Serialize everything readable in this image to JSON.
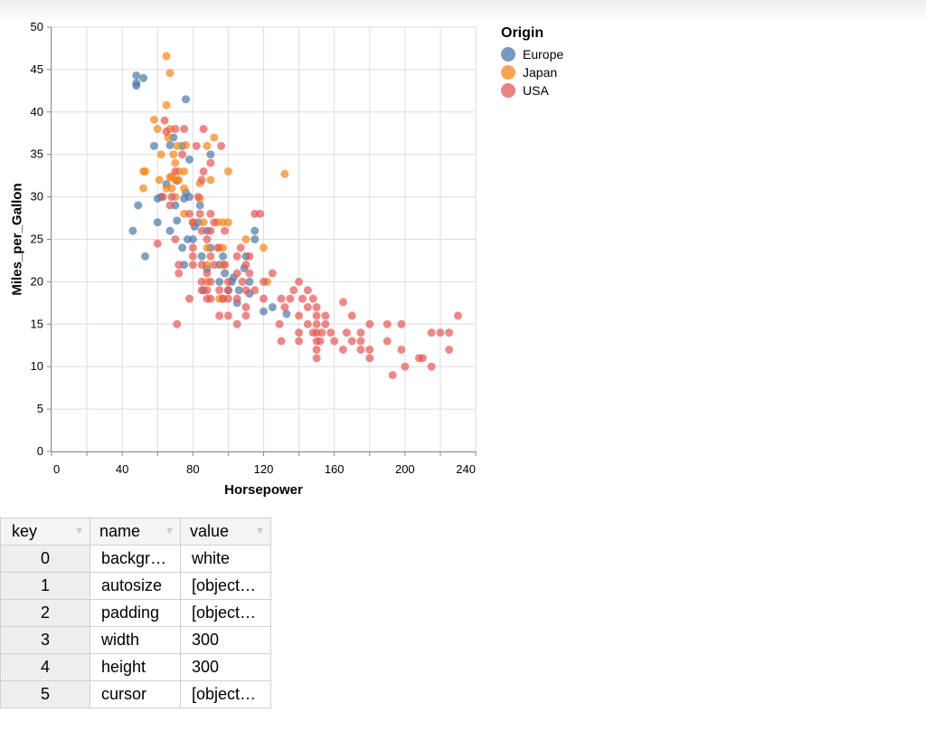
{
  "chart_data": {
    "type": "scatter",
    "xlabel": "Horsepower",
    "ylabel": "Miles_per_Gallon",
    "xlim": [
      0,
      240
    ],
    "ylim": [
      0,
      50
    ],
    "x_ticks": [
      "0",
      "40",
      "80",
      "120",
      "160",
      "200",
      "240"
    ],
    "y_ticks": [
      "0",
      "5",
      "10",
      "15",
      "20",
      "25",
      "30",
      "35",
      "40",
      "45",
      "50"
    ],
    "grid": true,
    "legend": {
      "title": "Origin",
      "placement": "right"
    },
    "series": [
      {
        "name": "Europe",
        "color": "#4c78a8",
        "points": [
          [
            46,
            26
          ],
          [
            48,
            44.3
          ],
          [
            48,
            43.4
          ],
          [
            48,
            43.1
          ],
          [
            49,
            29
          ],
          [
            52,
            44
          ],
          [
            53,
            23
          ],
          [
            58,
            36
          ],
          [
            60,
            27
          ],
          [
            60,
            29.8
          ],
          [
            62,
            30
          ],
          [
            65,
            31.5
          ],
          [
            67,
            26
          ],
          [
            67,
            36.1
          ],
          [
            69,
            37
          ],
          [
            70,
            29
          ],
          [
            71,
            31.9
          ],
          [
            71,
            27.2
          ],
          [
            74,
            36
          ],
          [
            74,
            24
          ],
          [
            75,
            29.8
          ],
          [
            75,
            22
          ],
          [
            76,
            30.5
          ],
          [
            76,
            41.5
          ],
          [
            77,
            25
          ],
          [
            78,
            30
          ],
          [
            78,
            34.4
          ],
          [
            80,
            25
          ],
          [
            81,
            26.5
          ],
          [
            83,
            27
          ],
          [
            84,
            29
          ],
          [
            85,
            23
          ],
          [
            86,
            19
          ],
          [
            88,
            21.5
          ],
          [
            88,
            26
          ],
          [
            90,
            24
          ],
          [
            90,
            35
          ],
          [
            95,
            22
          ],
          [
            95,
            20
          ],
          [
            97,
            23
          ],
          [
            98,
            21
          ],
          [
            100,
            19
          ],
          [
            102,
            20
          ],
          [
            103,
            20.5
          ],
          [
            105,
            17.5
          ],
          [
            106,
            19
          ],
          [
            109,
            21.6
          ],
          [
            110,
            23
          ],
          [
            112,
            20
          ],
          [
            112,
            18.6
          ],
          [
            115,
            25
          ],
          [
            115,
            26
          ],
          [
            120,
            16.5
          ],
          [
            125,
            17
          ],
          [
            133,
            16.2
          ]
        ]
      },
      {
        "name": "Japan",
        "color": "#f58518",
        "points": [
          [
            52,
            31
          ],
          [
            52,
            33
          ],
          [
            53,
            33
          ],
          [
            58,
            39.1
          ],
          [
            60,
            38
          ],
          [
            61,
            32
          ],
          [
            62,
            35
          ],
          [
            65,
            46.6
          ],
          [
            65,
            31
          ],
          [
            65,
            40.8
          ],
          [
            66,
            37
          ],
          [
            67,
            44.6
          ],
          [
            67,
            32.3
          ],
          [
            67,
            38
          ],
          [
            68,
            32.4
          ],
          [
            68,
            31
          ],
          [
            69,
            35
          ],
          [
            70,
            34
          ],
          [
            70,
            32
          ],
          [
            70,
            30
          ],
          [
            71,
            36
          ],
          [
            72,
            33
          ],
          [
            72,
            32
          ],
          [
            75,
            33
          ],
          [
            75,
            31
          ],
          [
            75,
            28
          ],
          [
            76,
            36.1
          ],
          [
            80,
            27
          ],
          [
            84,
            29.8
          ],
          [
            84,
            31.6
          ],
          [
            86,
            27
          ],
          [
            88,
            24
          ],
          [
            88,
            36
          ],
          [
            90,
            32
          ],
          [
            92,
            37
          ],
          [
            94,
            27
          ],
          [
            95,
            24
          ],
          [
            95,
            18
          ],
          [
            97,
            27
          ],
          [
            97,
            24
          ],
          [
            97,
            22
          ],
          [
            100,
            33
          ],
          [
            100,
            27
          ],
          [
            110,
            25
          ],
          [
            120,
            24
          ],
          [
            122,
            20
          ],
          [
            132,
            32.7
          ],
          [
            97,
            18
          ],
          [
            88,
            20
          ],
          [
            88,
            22
          ]
        ]
      },
      {
        "name": "USA",
        "color": "#e45756",
        "points": [
          [
            60,
            24.5
          ],
          [
            63,
            30
          ],
          [
            64,
            39
          ],
          [
            65,
            37.7
          ],
          [
            67,
            29
          ],
          [
            68,
            30
          ],
          [
            70,
            25
          ],
          [
            70,
            33
          ],
          [
            70,
            38
          ],
          [
            71,
            15
          ],
          [
            72,
            22
          ],
          [
            72,
            21
          ],
          [
            74,
            35
          ],
          [
            75,
            38
          ],
          [
            78,
            18
          ],
          [
            78,
            28
          ],
          [
            80,
            24
          ],
          [
            80,
            22
          ],
          [
            80,
            27
          ],
          [
            80,
            23
          ],
          [
            82,
            36
          ],
          [
            83,
            30
          ],
          [
            84,
            28
          ],
          [
            85,
            20
          ],
          [
            85,
            22
          ],
          [
            85,
            26
          ],
          [
            85,
            19
          ],
          [
            85,
            32
          ],
          [
            86,
            38
          ],
          [
            86,
            33
          ],
          [
            88,
            25
          ],
          [
            88,
            21
          ],
          [
            88,
            18
          ],
          [
            88,
            19
          ],
          [
            90,
            23
          ],
          [
            90,
            26
          ],
          [
            90,
            28
          ],
          [
            90,
            18
          ],
          [
            90,
            20
          ],
          [
            90,
            34
          ],
          [
            92,
            22
          ],
          [
            92,
            27
          ],
          [
            94,
            24
          ],
          [
            95,
            19
          ],
          [
            95,
            16
          ],
          [
            96,
            36
          ],
          [
            97,
            18
          ],
          [
            98,
            26
          ],
          [
            98,
            22
          ],
          [
            100,
            18
          ],
          [
            100,
            16
          ],
          [
            100,
            20
          ],
          [
            100,
            19
          ],
          [
            105,
            18
          ],
          [
            105,
            21
          ],
          [
            105,
            23
          ],
          [
            105,
            15
          ],
          [
            107,
            24
          ],
          [
            108,
            20
          ],
          [
            110,
            17
          ],
          [
            110,
            22
          ],
          [
            110,
            19
          ],
          [
            110,
            16
          ],
          [
            112,
            23
          ],
          [
            112,
            21
          ],
          [
            115,
            28
          ],
          [
            115,
            19
          ],
          [
            118,
            28
          ],
          [
            120,
            20
          ],
          [
            120,
            18
          ],
          [
            125,
            21
          ],
          [
            129,
            15
          ],
          [
            130,
            18
          ],
          [
            130,
            13
          ],
          [
            132,
            17
          ],
          [
            135,
            18
          ],
          [
            137,
            19
          ],
          [
            140,
            20
          ],
          [
            140,
            16
          ],
          [
            140,
            13
          ],
          [
            140,
            14
          ],
          [
            142,
            18
          ],
          [
            145,
            17
          ],
          [
            145,
            15
          ],
          [
            145,
            19
          ],
          [
            148,
            18
          ],
          [
            148,
            14
          ],
          [
            150,
            17
          ],
          [
            150,
            15
          ],
          [
            150,
            14
          ],
          [
            150,
            11
          ],
          [
            150,
            12
          ],
          [
            150,
            13
          ],
          [
            150,
            16
          ],
          [
            152,
            13
          ],
          [
            153,
            14
          ],
          [
            155,
            15
          ],
          [
            155,
            16
          ],
          [
            158,
            14
          ],
          [
            160,
            13
          ],
          [
            165,
            17.6
          ],
          [
            165,
            12
          ],
          [
            167,
            14
          ],
          [
            170,
            16
          ],
          [
            170,
            13
          ],
          [
            175,
            14
          ],
          [
            175,
            13
          ],
          [
            175,
            12
          ],
          [
            180,
            15
          ],
          [
            180,
            12
          ],
          [
            180,
            11
          ],
          [
            190,
            15
          ],
          [
            190,
            13
          ],
          [
            193,
            9
          ],
          [
            198,
            12
          ],
          [
            198,
            15
          ],
          [
            200,
            10
          ],
          [
            208,
            11
          ],
          [
            210,
            11
          ],
          [
            215,
            10
          ],
          [
            215,
            14
          ],
          [
            220,
            14
          ],
          [
            225,
            12
          ],
          [
            225,
            14
          ],
          [
            230,
            16
          ]
        ]
      }
    ]
  },
  "table": {
    "headers": [
      "key",
      "name",
      "value"
    ],
    "rows": [
      {
        "key": "0",
        "name": "backgr…",
        "value": "white"
      },
      {
        "key": "1",
        "name": "autosize",
        "value": "[object…"
      },
      {
        "key": "2",
        "name": "padding",
        "value": "[object…"
      },
      {
        "key": "3",
        "name": "width",
        "value": "300"
      },
      {
        "key": "4",
        "name": "height",
        "value": "300"
      },
      {
        "key": "5",
        "name": "cursor",
        "value": "[object…"
      }
    ]
  }
}
